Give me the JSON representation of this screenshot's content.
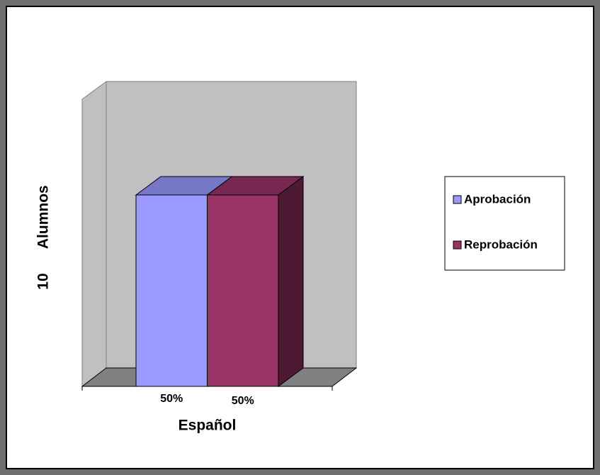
{
  "chart_data": {
    "type": "bar3d",
    "y_label": "10      Alumnos",
    "categories": [
      "Español"
    ],
    "series": [
      {
        "name": "Aprobación",
        "color": "#9999ff",
        "values": [
          50
        ],
        "value_labels": [
          "50%"
        ]
      },
      {
        "name": "Reprobación",
        "color": "#993366",
        "values": [
          50
        ],
        "value_labels": [
          "50%"
        ]
      }
    ],
    "ylim": [
      0,
      75
    ],
    "legend": "right"
  }
}
